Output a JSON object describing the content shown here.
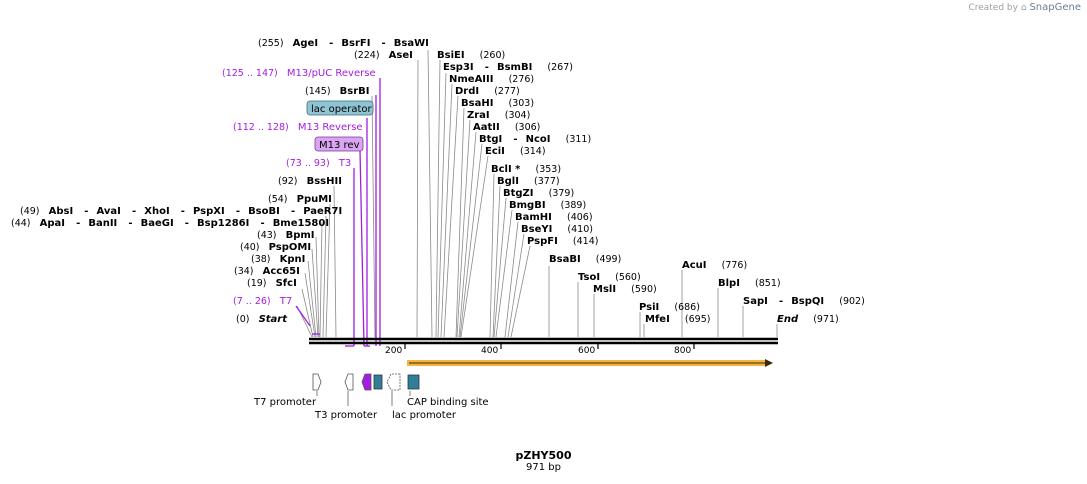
{
  "credit": {
    "prefix": "Created by",
    "brand": "SnapGene"
  },
  "plasmid": {
    "name": "pZHY500",
    "size": "971 bp"
  },
  "sites": [
    {
      "id": "start",
      "pos": "(0)",
      "label": "Start"
    },
    {
      "id": "t7p",
      "pos": "(7 .. 26)",
      "label": "T7"
    },
    {
      "id": "sfci",
      "pos": "(19)",
      "label": "SfcI"
    },
    {
      "id": "acc65i",
      "pos": "(34)",
      "label": "Acc65I"
    },
    {
      "id": "kpni",
      "pos": "(38)",
      "label": "KpnI"
    },
    {
      "id": "pspomi",
      "pos": "(40)",
      "label": "PspOMI"
    },
    {
      "id": "bpmi",
      "pos": "(43)",
      "label": "BpmI"
    },
    {
      "id": "ppumi",
      "pos": "(54)",
      "label": "PpuMI"
    },
    {
      "id": "bsshii",
      "pos": "(92)",
      "label": "BssHII"
    },
    {
      "id": "t3p",
      "pos": "(73 .. 93)",
      "label": "T3"
    },
    {
      "id": "m13rev",
      "pos": "(112 .. 128)",
      "label": "M13 Reverse"
    },
    {
      "id": "bsrbi",
      "pos": "(145)",
      "label": "BsrBI"
    },
    {
      "id": "m13puc",
      "pos": "(125 .. 147)",
      "label": "M13/pUC Reverse"
    },
    {
      "id": "asei",
      "pos": "(224)",
      "label": "AseI"
    },
    {
      "id": "bsiei",
      "pos": "(260)",
      "label": "BsiEI"
    },
    {
      "id": "nmeaiii",
      "pos": "(276)",
      "label": "NmeAIII"
    },
    {
      "id": "drdi",
      "pos": "(277)",
      "label": "DrdI"
    },
    {
      "id": "bsahi",
      "pos": "(303)",
      "label": "BsaHI"
    },
    {
      "id": "zrai",
      "pos": "(304)",
      "label": "ZraI"
    },
    {
      "id": "ecii",
      "pos": "(314)",
      "label": "EciI"
    },
    {
      "id": "bcli",
      "pos": "(353)",
      "label": "BclI *"
    },
    {
      "id": "bgli",
      "pos": "(377)",
      "label": "BglI"
    },
    {
      "id": "btgzi",
      "pos": "(379)",
      "label": "BtgZI"
    },
    {
      "id": "bmgbi",
      "pos": "(389)",
      "label": "BmgBI"
    },
    {
      "id": "bamhi",
      "pos": "(406)",
      "label": "BamHI"
    },
    {
      "id": "bseyi",
      "pos": "(410)",
      "label": "BseYI"
    },
    {
      "id": "pspfi",
      "pos": "(414)",
      "label": "PspFI"
    },
    {
      "id": "bsabi",
      "pos": "(499)",
      "label": "BsaBI"
    },
    {
      "id": "tsoi",
      "pos": "(560)",
      "label": "TsoI"
    },
    {
      "id": "msli",
      "pos": "(590)",
      "label": "MslI"
    },
    {
      "id": "psii",
      "pos": "(686)",
      "label": "PsiI"
    },
    {
      "id": "mfei",
      "pos": "(695)",
      "label": "MfeI"
    },
    {
      "id": "acui",
      "pos": "(776)",
      "label": "AcuI"
    },
    {
      "id": "blpi",
      "pos": "(851)",
      "label": "BlpI"
    },
    {
      "id": "end",
      "pos": "(971)",
      "label": "End"
    }
  ],
  "multi_sites": [
    {
      "id": "agei",
      "pos": "(255)",
      "labels": [
        "AgeI",
        "BsrFI",
        "BsaWI"
      ]
    },
    {
      "id": "absi",
      "pos": "(49)",
      "labels": [
        "AbsI",
        "AvaI",
        "XhoI",
        "PspXI",
        "BsoBI",
        "PaeR7I"
      ]
    },
    {
      "id": "apai",
      "pos": "(44)",
      "labels": [
        "ApaI",
        "BanII",
        "BaeGI",
        "Bsp1286I",
        "Bme1580I"
      ]
    },
    {
      "id": "esp3i",
      "pos": "(267)",
      "labels": [
        "Esp3I",
        "BsmBI"
      ]
    },
    {
      "id": "aatii",
      "pos": "(306)",
      "labels": [
        "AatII"
      ]
    },
    {
      "id": "btgi",
      "pos": "(311)",
      "labels": [
        "BtgI",
        "NcoI"
      ]
    },
    {
      "id": "sapi",
      "pos": "(902)",
      "labels": [
        "SapI",
        "BspQI"
      ]
    }
  ],
  "boxed_features": [
    {
      "id": "lacop",
      "label": "lac operator",
      "color": "#8fc4d2"
    },
    {
      "id": "m13revbox",
      "label": "M13 rev",
      "color": "#d9a4f0"
    }
  ],
  "axis_ticks": [
    "200",
    "400",
    "600",
    "800"
  ],
  "features": [
    {
      "id": "t7promoter",
      "label": "T7 promoter"
    },
    {
      "id": "t3promoter",
      "label": "T3 promoter"
    },
    {
      "id": "lacpromoter",
      "label": "lac promoter"
    },
    {
      "id": "capsite",
      "label": "CAP binding site"
    }
  ],
  "colors": {
    "primer": "#a21ee0",
    "cap": "#2f7f96",
    "orf": "#f5a623",
    "axis": "#000000"
  }
}
